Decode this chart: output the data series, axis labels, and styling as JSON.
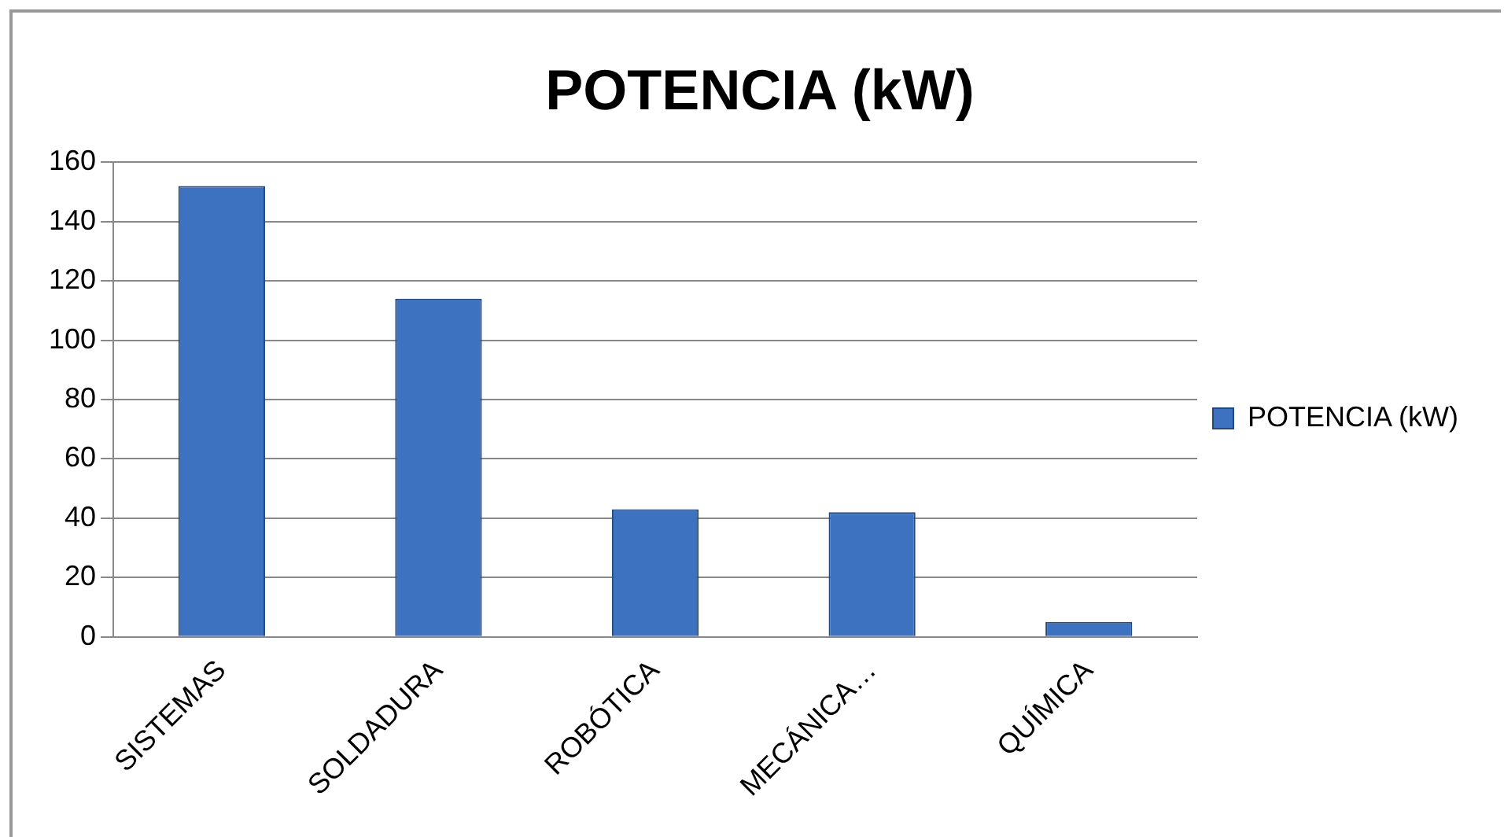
{
  "chart_data": {
    "type": "bar",
    "title": "POTENCIA (kW)",
    "categories": [
      "SISTEMAS",
      "SOLDADURA",
      "ROBÓTICA",
      "MECÁNICA…",
      "QUÍMICA"
    ],
    "series": [
      {
        "name": "POTENCIA (kW)",
        "color": "#3d72c0",
        "values": [
          152,
          114,
          43,
          42,
          5
        ]
      }
    ],
    "ylim": [
      0,
      160
    ],
    "yticks": [
      0,
      20,
      40,
      60,
      80,
      100,
      120,
      140,
      160
    ],
    "grid": "y",
    "legend": "right"
  }
}
